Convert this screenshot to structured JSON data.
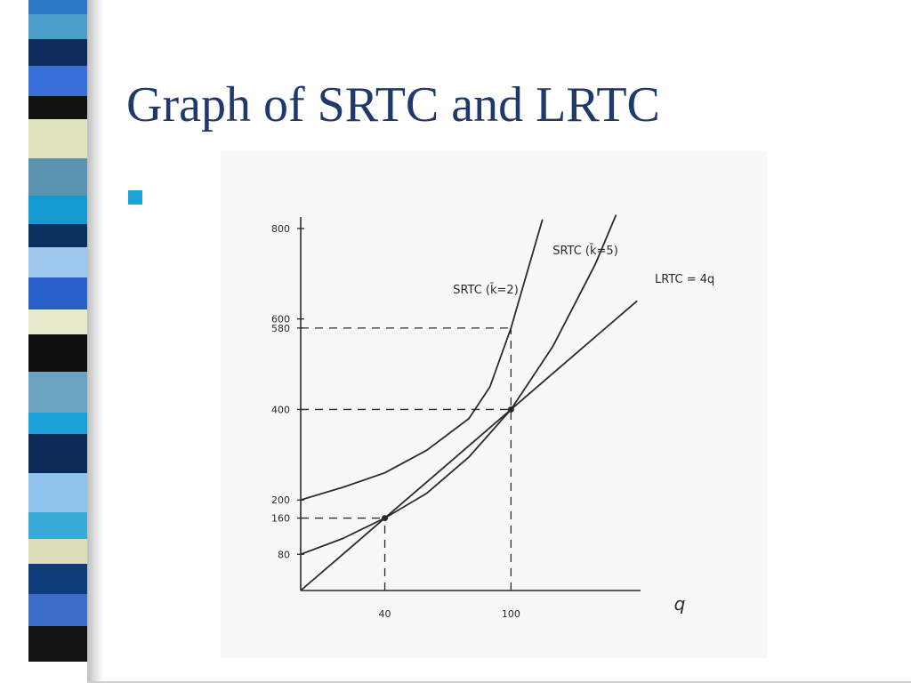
{
  "theme": {
    "title_color": "#1f3a6a",
    "bullet_color": "#1fa3d6",
    "stripe_colors": [
      "#2e78c8",
      "#4aa0c8",
      "#0e2d5c",
      "#3a6fd8",
      "#111111",
      "#e0e2bc",
      "#5a94b0",
      "#149ad0",
      "#0a3060",
      "#9cc8ee",
      "#2a5fc8",
      "#e8e8cc",
      "#101010",
      "#6aa4c2",
      "#1aa0d8",
      "#0c2a58",
      "#90c4ec",
      "#38a8d4",
      "#dcdcb8",
      "#0e3c7a",
      "#3a6cc8",
      "#121212"
    ]
  },
  "slide": {
    "title": "Graph of SRTC and LRTC"
  },
  "chart_data": {
    "type": "line",
    "title": "",
    "xlabel": "q",
    "ylabel": "",
    "xlim": [
      0,
      165
    ],
    "ylim": [
      0,
      900
    ],
    "grid": false,
    "x_ticks": [
      {
        "value": 40,
        "label": "40"
      },
      {
        "value": 100,
        "label": "100"
      }
    ],
    "y_ticks": [
      {
        "value": 80,
        "label": "80"
      },
      {
        "value": 160,
        "label": "160"
      },
      {
        "value": 200,
        "label": "200"
      },
      {
        "value": 400,
        "label": "400"
      },
      {
        "value": 580,
        "label": "580"
      },
      {
        "value": 600,
        "label": "600"
      },
      {
        "value": 800,
        "label": "800"
      }
    ],
    "series": [
      {
        "name": "LRTC = 4q",
        "x": [
          0,
          20,
          40,
          60,
          80,
          100,
          120,
          140,
          160
        ],
        "y": [
          0,
          80,
          160,
          240,
          320,
          400,
          480,
          560,
          640
        ]
      },
      {
        "name": "SRTC (k̄=2)",
        "x": [
          0,
          20,
          40,
          60,
          80,
          90,
          100,
          110,
          115
        ],
        "y": [
          200,
          228,
          260,
          310,
          380,
          450,
          580,
          740,
          820
        ]
      },
      {
        "name": "SRTC (k̄=5)",
        "x": [
          0,
          20,
          40,
          60,
          80,
          100,
          120,
          140,
          150
        ],
        "y": [
          80,
          115,
          160,
          215,
          295,
          400,
          540,
          720,
          830
        ]
      }
    ],
    "reference_lines": [
      {
        "from": [
          0,
          580
        ],
        "to": [
          100,
          580
        ]
      },
      {
        "from": [
          0,
          400
        ],
        "to": [
          100,
          400
        ]
      },
      {
        "from": [
          0,
          160
        ],
        "to": [
          40,
          160
        ]
      },
      {
        "from": [
          40,
          0
        ],
        "to": [
          40,
          160
        ]
      },
      {
        "from": [
          100,
          0
        ],
        "to": [
          100,
          580
        ]
      }
    ],
    "points": [
      {
        "x": 40,
        "y": 160
      },
      {
        "x": 100,
        "y": 400
      }
    ]
  }
}
